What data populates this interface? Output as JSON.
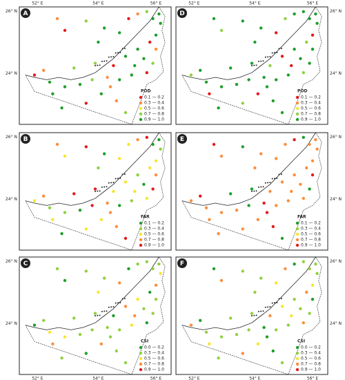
{
  "lon_labels": [
    "52° E",
    "54° E",
    "56° E"
  ],
  "lat_labels": [
    "26° N",
    "24° N"
  ],
  "panels": [
    {
      "label": "A",
      "legend": {
        "title": "POD",
        "items": [
          {
            "label": "0.1 — 0.2",
            "color": "#e31a1c"
          },
          {
            "label": "0.3 — 0.4",
            "color": "#fd8d3c"
          },
          {
            "label": "0.5 — 0.6",
            "color": "#f7e62a"
          },
          {
            "label": "0.7 — 0.8",
            "color": "#8fd13f"
          },
          {
            "label": "0.9 — 1.0",
            "color": "#1e9e2a"
          }
        ]
      }
    },
    {
      "label": "D",
      "legend": {
        "title": "POD",
        "items": [
          {
            "label": "0.1 — 0.2",
            "color": "#e31a1c"
          },
          {
            "label": "0.3 — 0.4",
            "color": "#fd8d3c"
          },
          {
            "label": "0.5 — 0.6",
            "color": "#f7e62a"
          },
          {
            "label": "0.7 — 0.8",
            "color": "#8fd13f"
          },
          {
            "label": "0.9 — 1.0",
            "color": "#1e9e2a"
          }
        ]
      }
    },
    {
      "label": "B",
      "legend": {
        "title": "FAR",
        "items": [
          {
            "label": "0.1 — 0.2",
            "color": "#1e9e2a"
          },
          {
            "label": "0.3 — 0.4",
            "color": "#8fd13f"
          },
          {
            "label": "0.5 — 0.6",
            "color": "#f7e62a"
          },
          {
            "label": "0.7 — 0.8",
            "color": "#fd8d3c"
          },
          {
            "label": "0.9 — 1.0",
            "color": "#e31a1c"
          }
        ]
      }
    },
    {
      "label": "E",
      "legend": {
        "title": "FAR",
        "items": [
          {
            "label": "0.1 — 0.2",
            "color": "#1e9e2a"
          },
          {
            "label": "0.3 — 0.4",
            "color": "#8fd13f"
          },
          {
            "label": "0.5 — 0.6",
            "color": "#f7e62a"
          },
          {
            "label": "0.7 — 0.8",
            "color": "#fd8d3c"
          },
          {
            "label": "0.9 — 1.0",
            "color": "#e31a1c"
          }
        ]
      }
    },
    {
      "label": "C",
      "legend": {
        "title": "CSI",
        "items": [
          {
            "label": "0.0 — 0.2",
            "color": "#1e9e2a"
          },
          {
            "label": "0.3 — 0.4",
            "color": "#8fd13f"
          },
          {
            "label": "0.5 — 0.6",
            "color": "#f7e62a"
          },
          {
            "label": "0.7 — 0.8",
            "color": "#fd8d3c"
          },
          {
            "label": "0.9 — 1.0",
            "color": "#e31a1c"
          }
        ]
      }
    },
    {
      "label": "F",
      "legend": {
        "title": "CSI",
        "items": [
          {
            "label": "0.0 — 0.2",
            "color": "#1e9e2a"
          },
          {
            "label": "0.3 — 0.4",
            "color": "#8fd13f"
          },
          {
            "label": "0.5 — 0.6",
            "color": "#f7e62a"
          },
          {
            "label": "0.7 — 0.8",
            "color": "#fd8d3c"
          },
          {
            "label": "0.9 — 1.0",
            "color": "#e31a1c"
          }
        ]
      }
    }
  ]
}
